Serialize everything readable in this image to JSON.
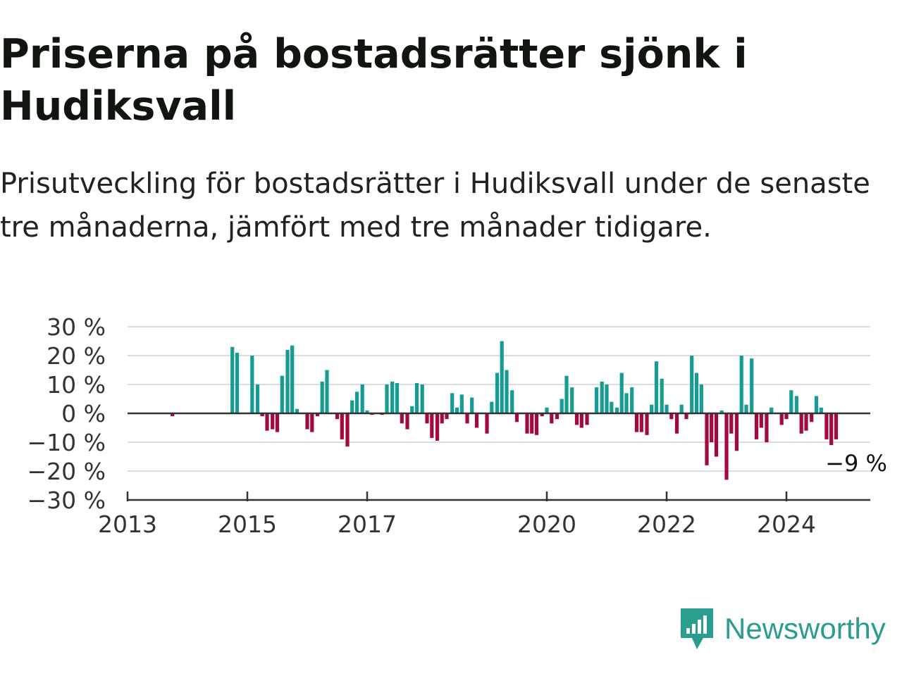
{
  "title": "Priserna på bostadsrätter sjönk i Hudiksvall",
  "subtitle": "Prisutveckling för bostadsrätter i Hudiksvall under de senaste tre månaderna, jämfört med tre månader tidigare.",
  "brand": {
    "name": "Newsworthy",
    "icon": "newsworthy-logo-icon",
    "color": "#2a9d8f"
  },
  "colors": {
    "positive": "#169c94",
    "negative": "#a3093f",
    "grid": "#dddddd",
    "axis": "#333333"
  },
  "chart_data": {
    "type": "bar",
    "ylabel": "",
    "xlabel": "",
    "ylim": [
      -30,
      30
    ],
    "yticks": [
      30,
      20,
      10,
      0,
      -10,
      -20,
      -30
    ],
    "ytick_labels": [
      "30 %",
      "20 %",
      "10 %",
      "0 %",
      "−10 %",
      "−20 %",
      "−30 %"
    ],
    "xlim": [
      2013.0,
      2025.4
    ],
    "xticks": [
      2013,
      2015,
      2017,
      2020,
      2022,
      2024
    ],
    "xtick_labels": [
      "2013",
      "2015",
      "2017",
      "2020",
      "2022",
      "2024"
    ],
    "grid": true,
    "annotation": {
      "x": 2025.0,
      "y": -9,
      "text": "−9 %"
    },
    "series": [
      {
        "values": [
          {
            "x": 2013.75,
            "y": -1
          },
          {
            "x": 2014.75,
            "y": 23
          },
          {
            "x": 2014.83,
            "y": 21
          },
          {
            "x": 2015.08,
            "y": 20
          },
          {
            "x": 2015.17,
            "y": 10
          },
          {
            "x": 2015.25,
            "y": -1
          },
          {
            "x": 2015.33,
            "y": -6
          },
          {
            "x": 2015.42,
            "y": -5.5
          },
          {
            "x": 2015.5,
            "y": -6.5
          },
          {
            "x": 2015.58,
            "y": 13
          },
          {
            "x": 2015.67,
            "y": 22
          },
          {
            "x": 2015.75,
            "y": 23.5
          },
          {
            "x": 2015.83,
            "y": 1.5
          },
          {
            "x": 2016.0,
            "y": -5.5
          },
          {
            "x": 2016.08,
            "y": -6.5
          },
          {
            "x": 2016.17,
            "y": -1
          },
          {
            "x": 2016.25,
            "y": 11
          },
          {
            "x": 2016.33,
            "y": 15
          },
          {
            "x": 2016.5,
            "y": -2
          },
          {
            "x": 2016.58,
            "y": -9
          },
          {
            "x": 2016.67,
            "y": -11.5
          },
          {
            "x": 2016.75,
            "y": 4.5
          },
          {
            "x": 2016.83,
            "y": 7.5
          },
          {
            "x": 2016.92,
            "y": 10
          },
          {
            "x": 2017.0,
            "y": 1
          },
          {
            "x": 2017.08,
            "y": -0.5
          },
          {
            "x": 2017.25,
            "y": -0.5
          },
          {
            "x": 2017.33,
            "y": 10
          },
          {
            "x": 2017.42,
            "y": 11
          },
          {
            "x": 2017.5,
            "y": 10.5
          },
          {
            "x": 2017.58,
            "y": -3.5
          },
          {
            "x": 2017.67,
            "y": -5.5
          },
          {
            "x": 2017.75,
            "y": 2.5
          },
          {
            "x": 2017.83,
            "y": 10.5
          },
          {
            "x": 2017.92,
            "y": 10
          },
          {
            "x": 2018.0,
            "y": -3.5
          },
          {
            "x": 2018.08,
            "y": -8.5
          },
          {
            "x": 2018.17,
            "y": -9.5
          },
          {
            "x": 2018.25,
            "y": -3.5
          },
          {
            "x": 2018.33,
            "y": -2
          },
          {
            "x": 2018.42,
            "y": 7
          },
          {
            "x": 2018.5,
            "y": 2
          },
          {
            "x": 2018.58,
            "y": 6.5
          },
          {
            "x": 2018.67,
            "y": -3.5
          },
          {
            "x": 2018.75,
            "y": 5.5
          },
          {
            "x": 2018.83,
            "y": -5
          },
          {
            "x": 2019.0,
            "y": -7
          },
          {
            "x": 2019.08,
            "y": 4
          },
          {
            "x": 2019.17,
            "y": 14
          },
          {
            "x": 2019.25,
            "y": 25
          },
          {
            "x": 2019.33,
            "y": 15
          },
          {
            "x": 2019.42,
            "y": 8
          },
          {
            "x": 2019.5,
            "y": -3
          },
          {
            "x": 2019.67,
            "y": -7
          },
          {
            "x": 2019.75,
            "y": -7
          },
          {
            "x": 2019.83,
            "y": -7.5
          },
          {
            "x": 2019.92,
            "y": -1
          },
          {
            "x": 2020.0,
            "y": 2
          },
          {
            "x": 2020.08,
            "y": -3.5
          },
          {
            "x": 2020.17,
            "y": -2
          },
          {
            "x": 2020.25,
            "y": 5
          },
          {
            "x": 2020.33,
            "y": 13
          },
          {
            "x": 2020.42,
            "y": 9
          },
          {
            "x": 2020.5,
            "y": -4
          },
          {
            "x": 2020.58,
            "y": -5
          },
          {
            "x": 2020.67,
            "y": -4
          },
          {
            "x": 2020.83,
            "y": 9
          },
          {
            "x": 2020.92,
            "y": 11
          },
          {
            "x": 2021.0,
            "y": 10
          },
          {
            "x": 2021.08,
            "y": 4
          },
          {
            "x": 2021.17,
            "y": 2
          },
          {
            "x": 2021.25,
            "y": 14
          },
          {
            "x": 2021.33,
            "y": 7
          },
          {
            "x": 2021.42,
            "y": 9
          },
          {
            "x": 2021.5,
            "y": -6.5
          },
          {
            "x": 2021.58,
            "y": -6.5
          },
          {
            "x": 2021.67,
            "y": -7.5
          },
          {
            "x": 2021.75,
            "y": 3
          },
          {
            "x": 2021.83,
            "y": 18
          },
          {
            "x": 2021.92,
            "y": 12
          },
          {
            "x": 2022.0,
            "y": 3
          },
          {
            "x": 2022.08,
            "y": -2
          },
          {
            "x": 2022.17,
            "y": -7
          },
          {
            "x": 2022.25,
            "y": 3
          },
          {
            "x": 2022.33,
            "y": -2
          },
          {
            "x": 2022.42,
            "y": 20
          },
          {
            "x": 2022.5,
            "y": 14
          },
          {
            "x": 2022.58,
            "y": 10
          },
          {
            "x": 2022.67,
            "y": -18
          },
          {
            "x": 2022.75,
            "y": -10
          },
          {
            "x": 2022.83,
            "y": -15
          },
          {
            "x": 2022.92,
            "y": 1
          },
          {
            "x": 2023.0,
            "y": -23
          },
          {
            "x": 2023.08,
            "y": -7
          },
          {
            "x": 2023.17,
            "y": -13
          },
          {
            "x": 2023.25,
            "y": 20
          },
          {
            "x": 2023.33,
            "y": 3
          },
          {
            "x": 2023.42,
            "y": 19
          },
          {
            "x": 2023.5,
            "y": -9
          },
          {
            "x": 2023.58,
            "y": -5
          },
          {
            "x": 2023.67,
            "y": -10
          },
          {
            "x": 2023.75,
            "y": 2
          },
          {
            "x": 2023.92,
            "y": -4
          },
          {
            "x": 2024.0,
            "y": -2
          },
          {
            "x": 2024.08,
            "y": 8
          },
          {
            "x": 2024.17,
            "y": 6
          },
          {
            "x": 2024.25,
            "y": -7
          },
          {
            "x": 2024.33,
            "y": -6
          },
          {
            "x": 2024.42,
            "y": -3
          },
          {
            "x": 2024.5,
            "y": 6
          },
          {
            "x": 2024.58,
            "y": 2
          },
          {
            "x": 2024.67,
            "y": -9
          },
          {
            "x": 2024.75,
            "y": -11
          },
          {
            "x": 2024.83,
            "y": -9
          }
        ]
      }
    ]
  }
}
